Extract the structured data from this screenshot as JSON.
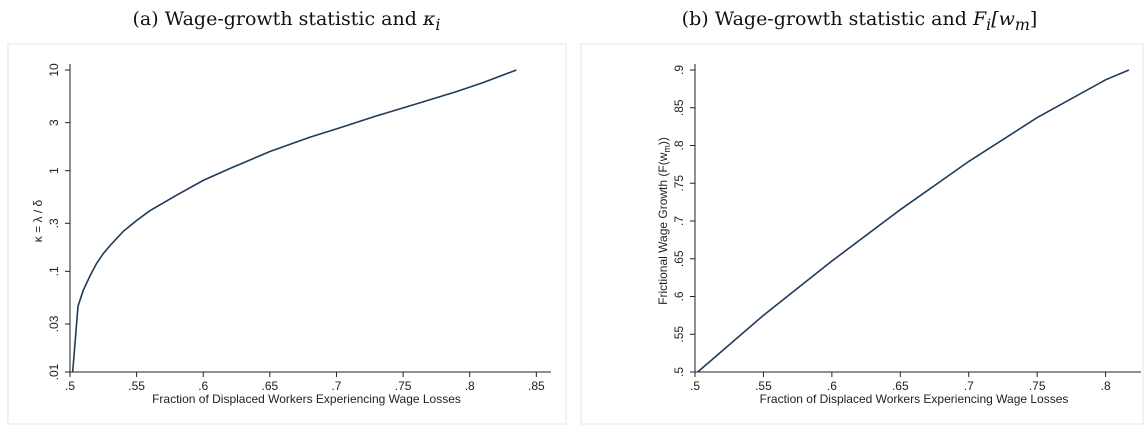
{
  "chart_data": [
    {
      "id": "a",
      "type": "line",
      "title_prefix": "(a) Wage-growth statistic and ",
      "title_math": "κ",
      "title_math_sub": "i",
      "title_math_rest": "",
      "xlabel": "Fraction of Displaced Workers Experiencing Wage Losses",
      "ylabel": "κ = λ / δ",
      "y_scale": "log",
      "xlim": [
        0.5,
        0.855
      ],
      "ylim": [
        0.01,
        10
      ],
      "x_ticks": [
        0.5,
        0.55,
        0.6,
        0.65,
        0.7,
        0.75,
        0.8,
        0.85
      ],
      "x_tick_labels": [
        ".5",
        ".55",
        ".6",
        ".65",
        ".7",
        ".75",
        ".8",
        ".85"
      ],
      "y_ticks": [
        0.01,
        0.03,
        0.1,
        0.3,
        1,
        3,
        10
      ],
      "y_tick_labels": [
        ".01",
        ".03",
        ".1",
        ".3",
        "1",
        "3",
        "10"
      ],
      "line_color": "#1f3b5a",
      "series": [
        {
          "x": [
            0.502,
            0.506,
            0.51,
            0.515,
            0.52,
            0.525,
            0.53,
            0.54,
            0.55,
            0.56,
            0.58,
            0.6,
            0.62,
            0.65,
            0.68,
            0.7,
            0.73,
            0.76,
            0.79,
            0.81,
            0.835
          ],
          "y": [
            0.01,
            0.045,
            0.065,
            0.09,
            0.12,
            0.15,
            0.18,
            0.25,
            0.32,
            0.4,
            0.57,
            0.8,
            1.05,
            1.55,
            2.15,
            2.6,
            3.5,
            4.6,
            6.1,
            7.5,
            10
          ]
        }
      ]
    },
    {
      "id": "b",
      "type": "line",
      "title_prefix": "(b) Wage-growth statistic and ",
      "title_math": "F",
      "title_math_sub": "i",
      "title_math_rest": "[w",
      "title_math_sub2": "m",
      "title_math_end": "]",
      "xlabel": "Fraction of Displaced Workers Experiencing Wage Losses",
      "ylabel": "Frictional Wage Growth (F(w",
      "ylabel_sub": "m",
      "ylabel_end": "))",
      "y_scale": "linear",
      "xlim": [
        0.5,
        0.82
      ],
      "ylim": [
        0.5,
        0.9
      ],
      "x_ticks": [
        0.5,
        0.55,
        0.6,
        0.65,
        0.7,
        0.75,
        0.8
      ],
      "x_tick_labels": [
        ".5",
        ".55",
        ".6",
        ".65",
        ".7",
        ".75",
        ".8"
      ],
      "y_ticks": [
        0.5,
        0.55,
        0.6,
        0.65,
        0.7,
        0.75,
        0.8,
        0.85,
        0.9
      ],
      "y_tick_labels": [
        ".5",
        ".55",
        ".6",
        ".65",
        ".7",
        ".75",
        ".8",
        ".85",
        ".9"
      ],
      "line_color": "#1f3b5a",
      "series": [
        {
          "x": [
            0.502,
            0.55,
            0.6,
            0.65,
            0.7,
            0.75,
            0.8,
            0.817
          ],
          "y": [
            0.5,
            0.575,
            0.647,
            0.715,
            0.779,
            0.837,
            0.887,
            0.9
          ]
        }
      ]
    }
  ]
}
